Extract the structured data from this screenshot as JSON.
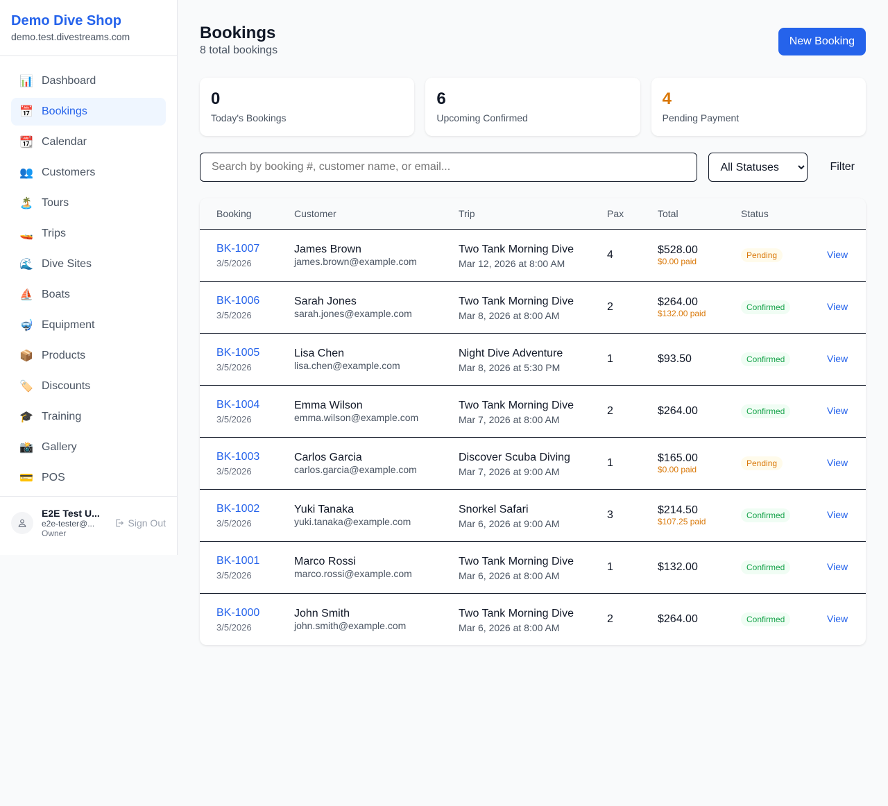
{
  "sidebar": {
    "shop_name": "Demo Dive Shop",
    "domain": "demo.test.divestreams.com",
    "items": [
      {
        "label": "Dashboard",
        "icon": "📊",
        "active": false
      },
      {
        "label": "Bookings",
        "icon": "📅",
        "active": true
      },
      {
        "label": "Calendar",
        "icon": "📆",
        "active": false
      },
      {
        "label": "Customers",
        "icon": "👥",
        "active": false
      },
      {
        "label": "Tours",
        "icon": "🏝️",
        "active": false
      },
      {
        "label": "Trips",
        "icon": "🚤",
        "active": false
      },
      {
        "label": "Dive Sites",
        "icon": "🌊",
        "active": false
      },
      {
        "label": "Boats",
        "icon": "⛵",
        "active": false
      },
      {
        "label": "Equipment",
        "icon": "🤿",
        "active": false
      },
      {
        "label": "Products",
        "icon": "📦",
        "active": false
      },
      {
        "label": "Discounts",
        "icon": "🏷️",
        "active": false
      },
      {
        "label": "Training",
        "icon": "🎓",
        "active": false
      },
      {
        "label": "Gallery",
        "icon": "📸",
        "active": false
      },
      {
        "label": "POS",
        "icon": "💳",
        "active": false
      }
    ],
    "user": {
      "name": "E2E Test U...",
      "email": "e2e-tester@...",
      "role": "Owner",
      "sign_out": "Sign Out"
    }
  },
  "header": {
    "title": "Bookings",
    "subtitle": "8 total bookings",
    "new_button": "New Booking"
  },
  "stats": [
    {
      "value": "0",
      "label": "Today's Bookings",
      "color": "#111827"
    },
    {
      "value": "6",
      "label": "Upcoming Confirmed",
      "color": "#111827"
    },
    {
      "value": "4",
      "label": "Pending Payment",
      "color": "#d97706"
    }
  ],
  "filters": {
    "search_placeholder": "Search by booking #, customer name, or email...",
    "status_selected": "All Statuses",
    "filter_button": "Filter"
  },
  "table": {
    "columns": [
      "Booking",
      "Customer",
      "Trip",
      "Pax",
      "Total",
      "Status",
      ""
    ],
    "rows": [
      {
        "id": "BK-1007",
        "date": "3/5/2026",
        "customer": "James Brown",
        "email": "james.brown@example.com",
        "trip": "Two Tank Morning Dive",
        "trip_date": "Mar 12, 2026 at 8:00 AM",
        "pax": "4",
        "total": "$528.00",
        "paid": "$0.00 paid",
        "status": "Pending",
        "action": "View"
      },
      {
        "id": "BK-1006",
        "date": "3/5/2026",
        "customer": "Sarah Jones",
        "email": "sarah.jones@example.com",
        "trip": "Two Tank Morning Dive",
        "trip_date": "Mar 8, 2026 at 8:00 AM",
        "pax": "2",
        "total": "$264.00",
        "paid": "$132.00 paid",
        "status": "Confirmed",
        "action": "View"
      },
      {
        "id": "BK-1005",
        "date": "3/5/2026",
        "customer": "Lisa Chen",
        "email": "lisa.chen@example.com",
        "trip": "Night Dive Adventure",
        "trip_date": "Mar 8, 2026 at 5:30 PM",
        "pax": "1",
        "total": "$93.50",
        "paid": null,
        "status": "Confirmed",
        "action": "View"
      },
      {
        "id": "BK-1004",
        "date": "3/5/2026",
        "customer": "Emma Wilson",
        "email": "emma.wilson@example.com",
        "trip": "Two Tank Morning Dive",
        "trip_date": "Mar 7, 2026 at 8:00 AM",
        "pax": "2",
        "total": "$264.00",
        "paid": null,
        "status": "Confirmed",
        "action": "View"
      },
      {
        "id": "BK-1003",
        "date": "3/5/2026",
        "customer": "Carlos Garcia",
        "email": "carlos.garcia@example.com",
        "trip": "Discover Scuba Diving",
        "trip_date": "Mar 7, 2026 at 9:00 AM",
        "pax": "1",
        "total": "$165.00",
        "paid": "$0.00 paid",
        "status": "Pending",
        "action": "View"
      },
      {
        "id": "BK-1002",
        "date": "3/5/2026",
        "customer": "Yuki Tanaka",
        "email": "yuki.tanaka@example.com",
        "trip": "Snorkel Safari",
        "trip_date": "Mar 6, 2026 at 9:00 AM",
        "pax": "3",
        "total": "$214.50",
        "paid": "$107.25 paid",
        "status": "Confirmed",
        "action": "View"
      },
      {
        "id": "BK-1001",
        "date": "3/5/2026",
        "customer": "Marco Rossi",
        "email": "marco.rossi@example.com",
        "trip": "Two Tank Morning Dive",
        "trip_date": "Mar 6, 2026 at 8:00 AM",
        "pax": "1",
        "total": "$132.00",
        "paid": null,
        "status": "Confirmed",
        "action": "View"
      },
      {
        "id": "BK-1000",
        "date": "3/5/2026",
        "customer": "John Smith",
        "email": "john.smith@example.com",
        "trip": "Two Tank Morning Dive",
        "trip_date": "Mar 6, 2026 at 8:00 AM",
        "pax": "2",
        "total": "$264.00",
        "paid": null,
        "status": "Confirmed",
        "action": "View"
      }
    ]
  },
  "status_colors": {
    "Pending": {
      "bg": "#fffbeb",
      "fg": "#d97706"
    },
    "Confirmed": {
      "bg": "#f0fdf4",
      "fg": "#16a34a"
    }
  }
}
